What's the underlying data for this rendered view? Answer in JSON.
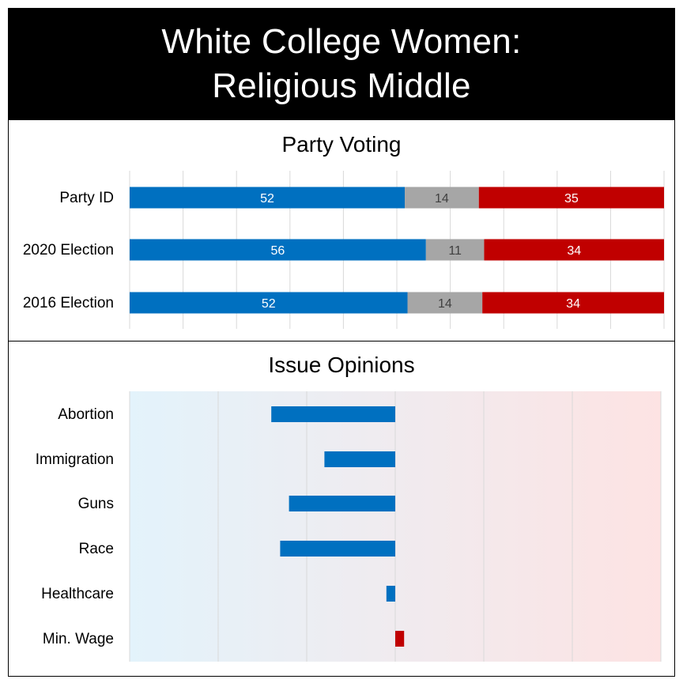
{
  "header": {
    "title_line1": "White College Women:",
    "title_line2": "Religious Middle"
  },
  "colors": {
    "dem": "#0070C0",
    "other": "#A6A6A6",
    "rep": "#C00000",
    "bg_left": "#E3F3FB",
    "bg_right": "#FDE3E3",
    "grid": "#D9D9D9"
  },
  "chart_data": [
    {
      "type": "bar",
      "orientation": "horizontal",
      "stacked": true,
      "title": "Party Voting",
      "categories": [
        "Party ID",
        "2020 Election",
        "2016 Election"
      ],
      "series": [
        {
          "values": [
            52,
            56,
            52
          ]
        },
        {
          "values": [
            14,
            11,
            14
          ]
        },
        {
          "values": [
            35,
            34,
            34
          ]
        }
      ],
      "grid": true,
      "legend": "none"
    },
    {
      "type": "bar",
      "orientation": "horizontal",
      "diverging": true,
      "title": "Issue Opinions",
      "categories": [
        "Abortion",
        "Immigration",
        "Guns",
        "Race",
        "Healthcare",
        "Min. Wage"
      ],
      "values": [
        -0.28,
        -0.16,
        -0.24,
        -0.26,
        -0.02,
        0.02
      ],
      "xlim": [
        -0.6,
        0.6
      ],
      "grid": true,
      "legend": "none"
    }
  ]
}
